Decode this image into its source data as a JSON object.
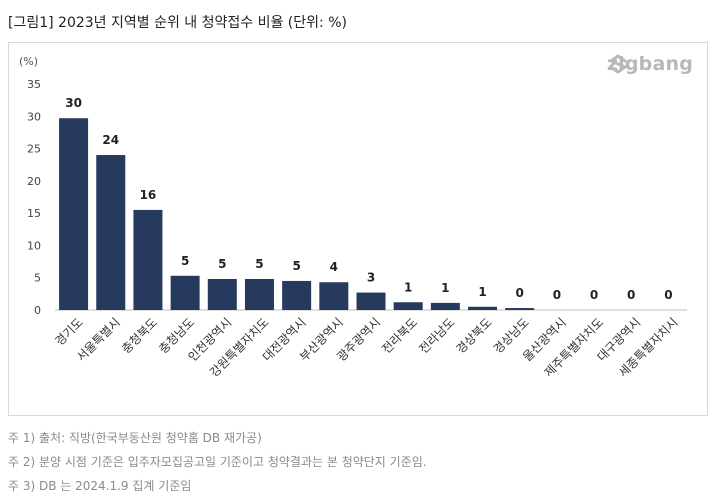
{
  "figure_title": "[그림1] 2023년 지역별 순위 내 청약접수 비율 (단위: %)",
  "logo": {
    "text": "zigbang",
    "icon": "zigbang-logo-icon",
    "color": "#b8b8b8"
  },
  "notes": [
    "주 1) 출처: 직방(한국부동산원 청약홈 DB 재가공)",
    "주 2) 분양 시점 기준은 입주자모집공고일 기준이고 청약결과는 본 청약단지 기준임.",
    "주 3) DB 는 2024.1.9 집계 기준임"
  ],
  "chart_data": {
    "type": "bar",
    "title": "",
    "ylabel": "(%)",
    "xlabel": "",
    "ylim": [
      0,
      35
    ],
    "yticks": [
      0,
      5,
      10,
      15,
      20,
      25,
      30,
      35
    ],
    "grid": false,
    "bar_color": "#263a5e",
    "categories": [
      "경기도",
      "서울특별시",
      "충청북도",
      "충청남도",
      "인천광역시",
      "강원특별자치도",
      "대전광역시",
      "부산광역시",
      "광주광역시",
      "전라북도",
      "전라남도",
      "경상북도",
      "경상남도",
      "울산광역시",
      "제주특별자치도",
      "대구광역시",
      "세종특별자치시"
    ],
    "values": [
      29.7,
      24.0,
      15.5,
      5.3,
      4.8,
      4.8,
      4.5,
      4.3,
      2.7,
      1.2,
      1.1,
      0.5,
      0.3,
      0,
      0,
      0,
      0
    ],
    "data_labels": [
      "30",
      "24",
      "16",
      "5",
      "5",
      "5",
      "5",
      "4",
      "3",
      "1",
      "1",
      "1",
      "0",
      "0",
      "0",
      "0",
      "0"
    ]
  }
}
